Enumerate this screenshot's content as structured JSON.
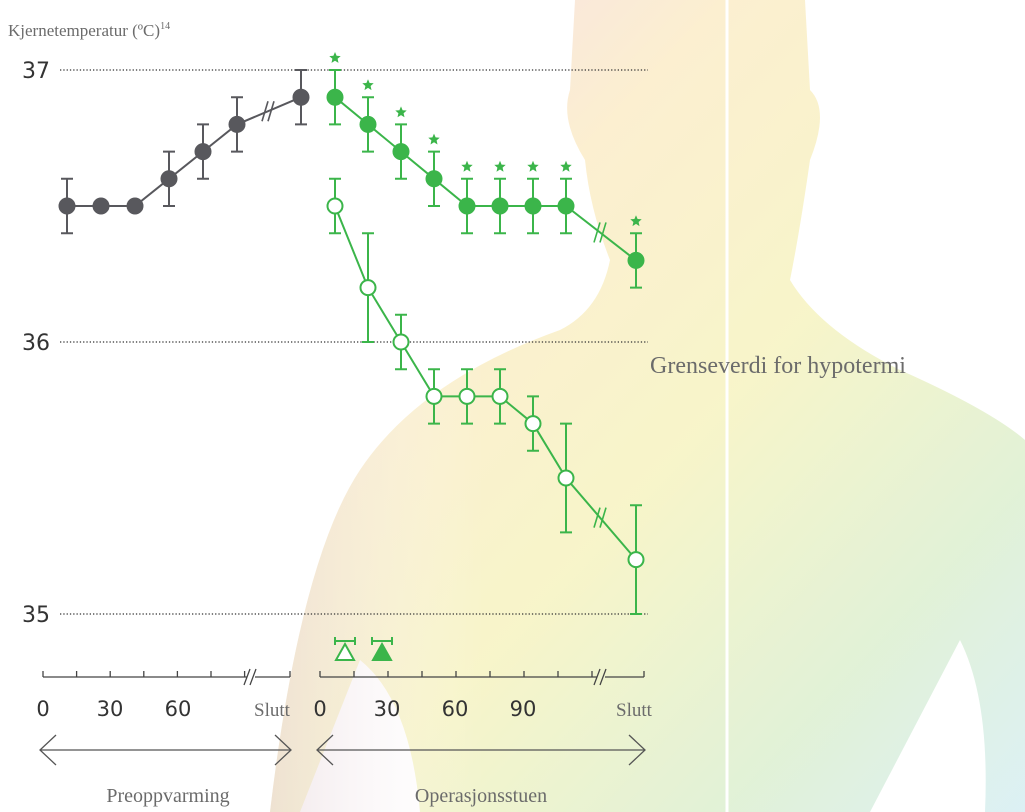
{
  "chart_data": {
    "type": "line",
    "ylabel": "Kjernetemperatur (ºC)",
    "ylabel_ref": "14",
    "ylim": [
      35,
      37
    ],
    "yticks": [
      35,
      36,
      37
    ],
    "threshold_label": "Grenseverdi for hypotermi",
    "phases": [
      {
        "label": "Preoppvarming",
        "categories": [
          "0",
          "30",
          "60",
          "Slutt"
        ]
      },
      {
        "label": "Operasjonsstuen",
        "categories": [
          "0",
          "30",
          "60",
          "90",
          "Slutt"
        ]
      }
    ],
    "series": [
      {
        "color": "#58585d",
        "marker": "filled",
        "phase": 0,
        "values": [
          36.5,
          36.5,
          36.5,
          36.6,
          36.7,
          36.8,
          36.9
        ],
        "errors": [
          0.1,
          0,
          0,
          0.1,
          0.1,
          0.1,
          0.1
        ]
      },
      {
        "color": "#3bb54a",
        "marker": "filled",
        "phase": 1,
        "significance": true,
        "values": [
          36.9,
          36.8,
          36.7,
          36.6,
          36.5,
          36.5,
          36.5,
          36.5,
          36.3
        ],
        "errors": [
          0.1,
          0.1,
          0.1,
          0.1,
          0.1,
          0.1,
          0.1,
          0.1,
          0.1
        ]
      },
      {
        "color": "#3bb54a",
        "marker": "open",
        "phase": 1,
        "values": [
          36.5,
          36.2,
          36.0,
          35.8,
          35.8,
          35.8,
          35.7,
          35.5,
          35.2
        ],
        "errors": [
          0.1,
          0.2,
          0.1,
          0.1,
          0.1,
          0.1,
          0.1,
          0.2,
          0.2
        ]
      }
    ]
  }
}
